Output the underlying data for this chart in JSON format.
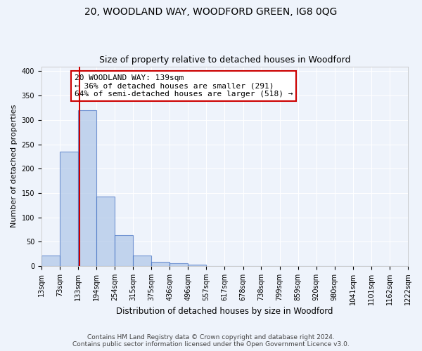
{
  "title": "20, WOODLAND WAY, WOODFORD GREEN, IG8 0QG",
  "subtitle": "Size of property relative to detached houses in Woodford",
  "xlabel": "Distribution of detached houses by size in Woodford",
  "ylabel": "Number of detached properties",
  "bin_edges": [
    13,
    73,
    133,
    194,
    254,
    315,
    375,
    436,
    496,
    557,
    617,
    678,
    738,
    799,
    859,
    920,
    980,
    1041,
    1101,
    1162,
    1222
  ],
  "bar_heights": [
    22,
    235,
    320,
    143,
    63,
    22,
    8,
    5,
    2,
    0,
    0,
    0,
    0,
    0,
    0,
    0,
    0,
    0,
    0,
    0
  ],
  "bar_color": "#aec6e8",
  "bar_edge_color": "#4472c4",
  "bar_alpha": 0.7,
  "red_line_x": 139,
  "red_line_color": "#cc0000",
  "annotation_line1": "20 WOODLAND WAY: 139sqm",
  "annotation_line2": "← 36% of detached houses are smaller (291)",
  "annotation_line3": "64% of semi-detached houses are larger (518) →",
  "annotation_box_color": "white",
  "annotation_box_edge_color": "#cc0000",
  "ylim": [
    0,
    410
  ],
  "yticks": [
    0,
    50,
    100,
    150,
    200,
    250,
    300,
    350,
    400
  ],
  "tick_labels": [
    "13sqm",
    "73sqm",
    "133sqm",
    "194sqm",
    "254sqm",
    "315sqm",
    "375sqm",
    "436sqm",
    "496sqm",
    "557sqm",
    "617sqm",
    "678sqm",
    "738sqm",
    "799sqm",
    "859sqm",
    "920sqm",
    "980sqm",
    "1041sqm",
    "1101sqm",
    "1162sqm",
    "1222sqm"
  ],
  "background_color": "#eef3fb",
  "grid_color": "white",
  "footer_text": "Contains HM Land Registry data © Crown copyright and database right 2024.\nContains public sector information licensed under the Open Government Licence v3.0.",
  "title_fontsize": 10,
  "subtitle_fontsize": 9,
  "xlabel_fontsize": 8.5,
  "ylabel_fontsize": 8,
  "tick_fontsize": 7,
  "annotation_fontsize": 8,
  "footer_fontsize": 6.5
}
